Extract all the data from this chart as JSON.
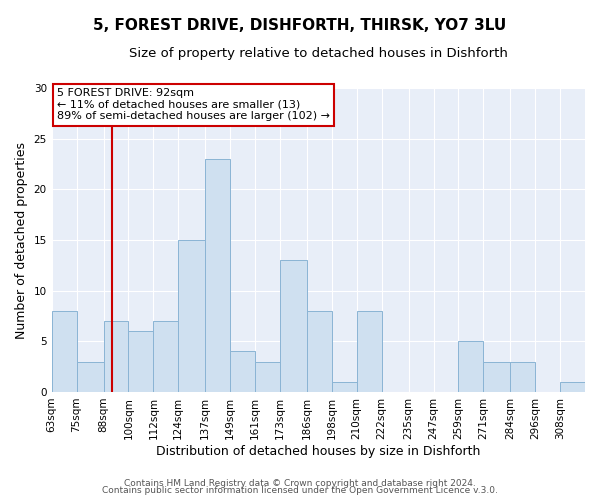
{
  "title": "5, FOREST DRIVE, DISHFORTH, THIRSK, YO7 3LU",
  "subtitle": "Size of property relative to detached houses in Dishforth",
  "xlabel": "Distribution of detached houses by size in Dishforth",
  "ylabel": "Number of detached properties",
  "bin_labels": [
    "63sqm",
    "75sqm",
    "88sqm",
    "100sqm",
    "112sqm",
    "124sqm",
    "137sqm",
    "149sqm",
    "161sqm",
    "173sqm",
    "186sqm",
    "198sqm",
    "210sqm",
    "222sqm",
    "235sqm",
    "247sqm",
    "259sqm",
    "271sqm",
    "284sqm",
    "296sqm",
    "308sqm"
  ],
  "bin_edges": [
    63,
    75,
    88,
    100,
    112,
    124,
    137,
    149,
    161,
    173,
    186,
    198,
    210,
    222,
    235,
    247,
    259,
    271,
    284,
    296,
    308
  ],
  "counts": [
    8,
    3,
    7,
    6,
    7,
    15,
    23,
    4,
    3,
    13,
    8,
    1,
    8,
    0,
    0,
    0,
    5,
    3,
    3,
    0,
    1
  ],
  "bar_color": "#cfe0f0",
  "bar_edge_color": "#8ab4d4",
  "property_value": 92,
  "vline_color": "#cc0000",
  "annotation_line1": "5 FOREST DRIVE: 92sqm",
  "annotation_line2": "← 11% of detached houses are smaller (13)",
  "annotation_line3": "89% of semi-detached houses are larger (102) →",
  "annotation_box_color": "#ffffff",
  "annotation_box_edge": "#cc0000",
  "ylim": [
    0,
    30
  ],
  "yticks": [
    0,
    5,
    10,
    15,
    20,
    25,
    30
  ],
  "footer1": "Contains HM Land Registry data © Crown copyright and database right 2024.",
  "footer2": "Contains public sector information licensed under the Open Government Licence v.3.0.",
  "fig_bg_color": "#ffffff",
  "plot_bg_color": "#e8eef8",
  "grid_color": "#ffffff",
  "title_fontsize": 11,
  "subtitle_fontsize": 9.5,
  "axis_label_fontsize": 9,
  "tick_fontsize": 7.5,
  "annotation_fontsize": 8,
  "footer_fontsize": 6.5
}
